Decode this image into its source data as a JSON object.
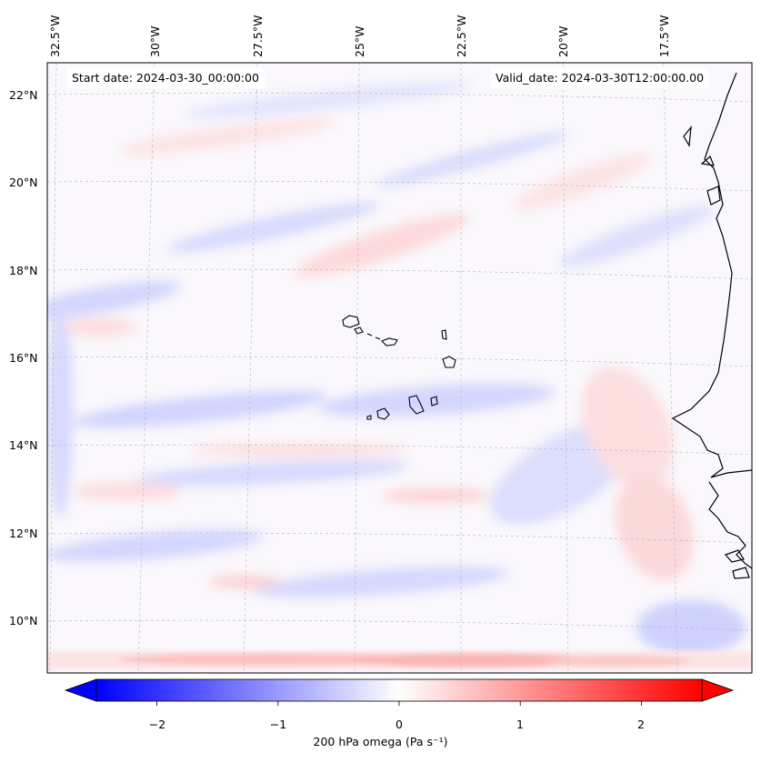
{
  "map": {
    "start_date": "Start date: 2024-03-30_00:00:00",
    "valid_date": "Valid_date: 2024-03-30T12:00:00.00",
    "lon_labels": [
      "32.5°W",
      "30°W",
      "27.5°W",
      "25°W",
      "22.5°W",
      "20°W",
      "17.5°W"
    ],
    "lat_labels": [
      "22°N",
      "20°N",
      "18°N",
      "16°N",
      "14°N",
      "12°N",
      "10°N"
    ],
    "colors": {
      "negative": "#0000ff",
      "zero": "#ffffff",
      "positive": "#ff0000",
      "coast": "#000000",
      "grid": "#b0b0b0"
    }
  },
  "colorbar": {
    "ticks": [
      "−2",
      "−1",
      "0",
      "1",
      "2"
    ],
    "tick_values": [
      -2,
      -1,
      0,
      1,
      2
    ],
    "range": [
      -2.5,
      2.5
    ],
    "label": "200 hPa omega (Pa s⁻¹)"
  }
}
